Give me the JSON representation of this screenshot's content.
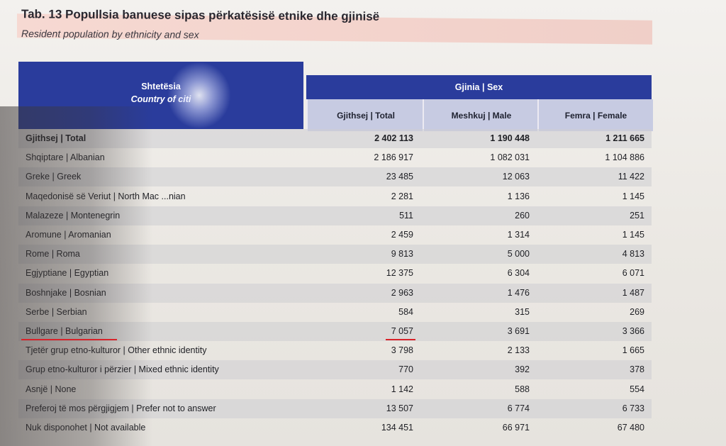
{
  "title": "Tab. 13 Popullsia banuese sipas përkatësisë etnike dhe gjinisë",
  "subtitle": "Resident population by ethnicity and sex",
  "table": {
    "header_col1_line1": "Shtetësia",
    "header_col1_line2": "Country of citi",
    "header_gender": "Gjinia | Sex",
    "columns": [
      "Gjithsej | Total",
      "Meshkuj | Male",
      "Femra | Female"
    ],
    "rows": [
      {
        "label": "Gjithsej | Total",
        "total": "2 402 113",
        "male": "1 190 448",
        "female": "1 211 665"
      },
      {
        "label": "Shqiptare | Albanian",
        "total": "2 186 917",
        "male": "1 082 031",
        "female": "1 104 886"
      },
      {
        "label": "Greke | Greek",
        "total": "23 485",
        "male": "12 063",
        "female": "11 422"
      },
      {
        "label": "Maqedonisë së Veriut | North Mac   ...nian",
        "total": "2 281",
        "male": "1 136",
        "female": "1 145"
      },
      {
        "label": "Malazeze | Montenegrin",
        "total": "511",
        "male": "260",
        "female": "251"
      },
      {
        "label": "Aromune | Aromanian",
        "total": "2 459",
        "male": "1 314",
        "female": "1 145"
      },
      {
        "label": "Rome | Roma",
        "total": "9 813",
        "male": "5 000",
        "female": "4 813"
      },
      {
        "label": "Egjyptiane | Egyptian",
        "total": "12 375",
        "male": "6 304",
        "female": "6 071"
      },
      {
        "label": "Boshnjake | Bosnian",
        "total": "2 963",
        "male": "1 476",
        "female": "1 487"
      },
      {
        "label": "Serbe | Serbian",
        "total": "584",
        "male": "315",
        "female": "269"
      },
      {
        "label": "Bullgare | Bulgarian",
        "total": "7 057",
        "male": "3 691",
        "female": "3 366"
      },
      {
        "label": "Tjetër grup etno-kulturor | Other ethnic identity",
        "total": "3 798",
        "male": "2 133",
        "female": "1 665"
      },
      {
        "label": "Grup etno-kulturor i përzier | Mixed ethnic identity",
        "total": "770",
        "male": "392",
        "female": "378"
      },
      {
        "label": "Asnjë | None",
        "total": "1 142",
        "male": "588",
        "female": "554"
      },
      {
        "label": "Preferoj të mos përgjigjem | Prefer not to answer",
        "total": "13 507",
        "male": "6 774",
        "female": "6 733"
      },
      {
        "label": "Nuk disponohet | Not available",
        "total": "134 451",
        "male": "66 971",
        "female": "67 480"
      }
    ]
  },
  "colors": {
    "header_blue": "#2a3c9c",
    "subheader": "#c7cbe2",
    "highlight_red": "#d8232a"
  }
}
